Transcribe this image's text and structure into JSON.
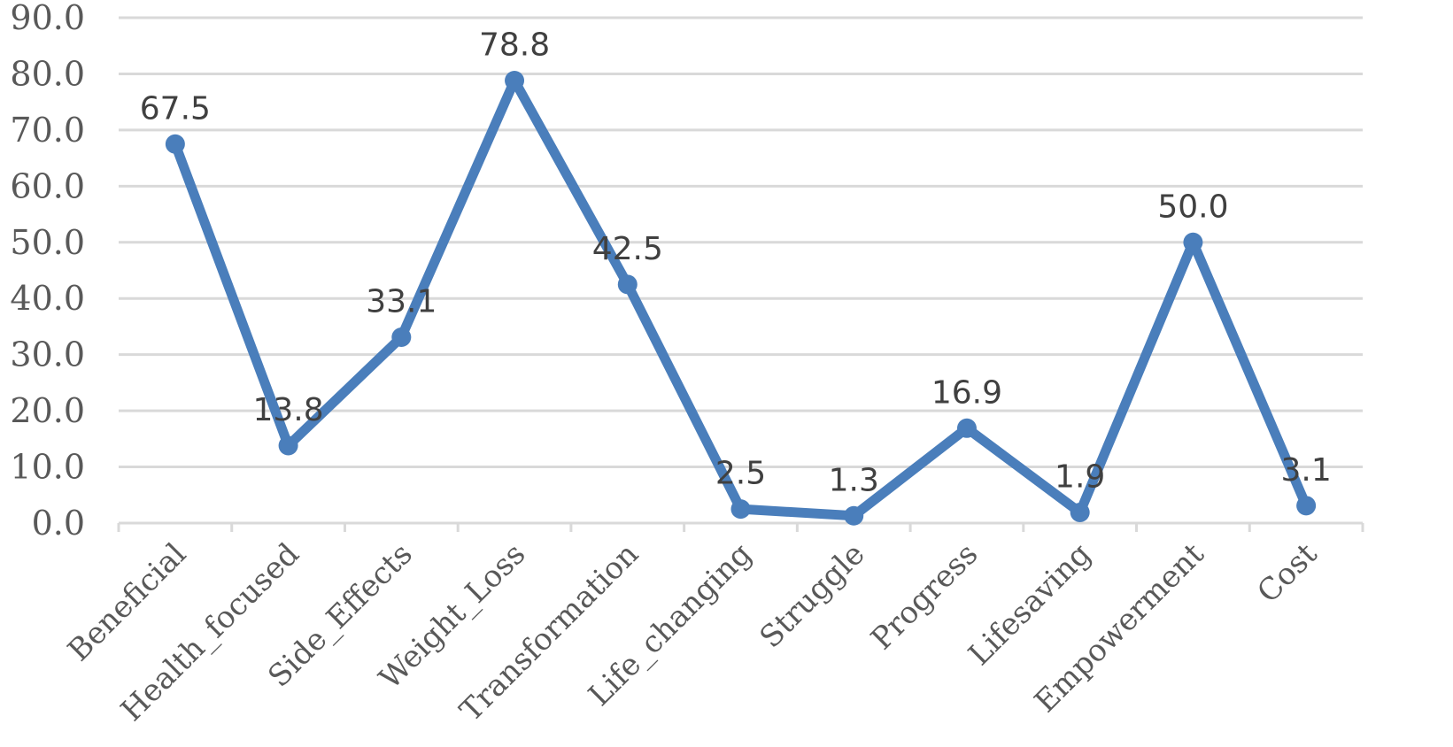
{
  "chart_data": {
    "type": "line",
    "title": "",
    "xlabel": "",
    "ylabel": "",
    "categories": [
      "Beneficial",
      "Health_focused",
      "Side_Effects",
      "Weight_Loss",
      "Transformation",
      "Life_changing",
      "Struggle",
      "Progress",
      "Lifesaving",
      "Empowerment",
      "Cost"
    ],
    "series": [
      {
        "values": [
          67.5,
          13.8,
          33.1,
          78.8,
          42.5,
          2.5,
          1.3,
          16.9,
          1.9,
          50.0,
          3.1
        ],
        "color": "#4a7ebb"
      }
    ],
    "data_labels": [
      "67.5",
      "13.8",
      "33.1",
      "78.8",
      "42.5",
      "2.5",
      "1.3",
      "16.9",
      "1.9",
      "50.0",
      "3.1"
    ],
    "ylim": [
      0,
      90
    ],
    "yticks": [
      "0.0",
      "10.0",
      "20.0",
      "30.0",
      "40.0",
      "50.0",
      "60.0",
      "70.0",
      "80.0",
      "90.0"
    ],
    "grid": true,
    "legend": "none"
  }
}
